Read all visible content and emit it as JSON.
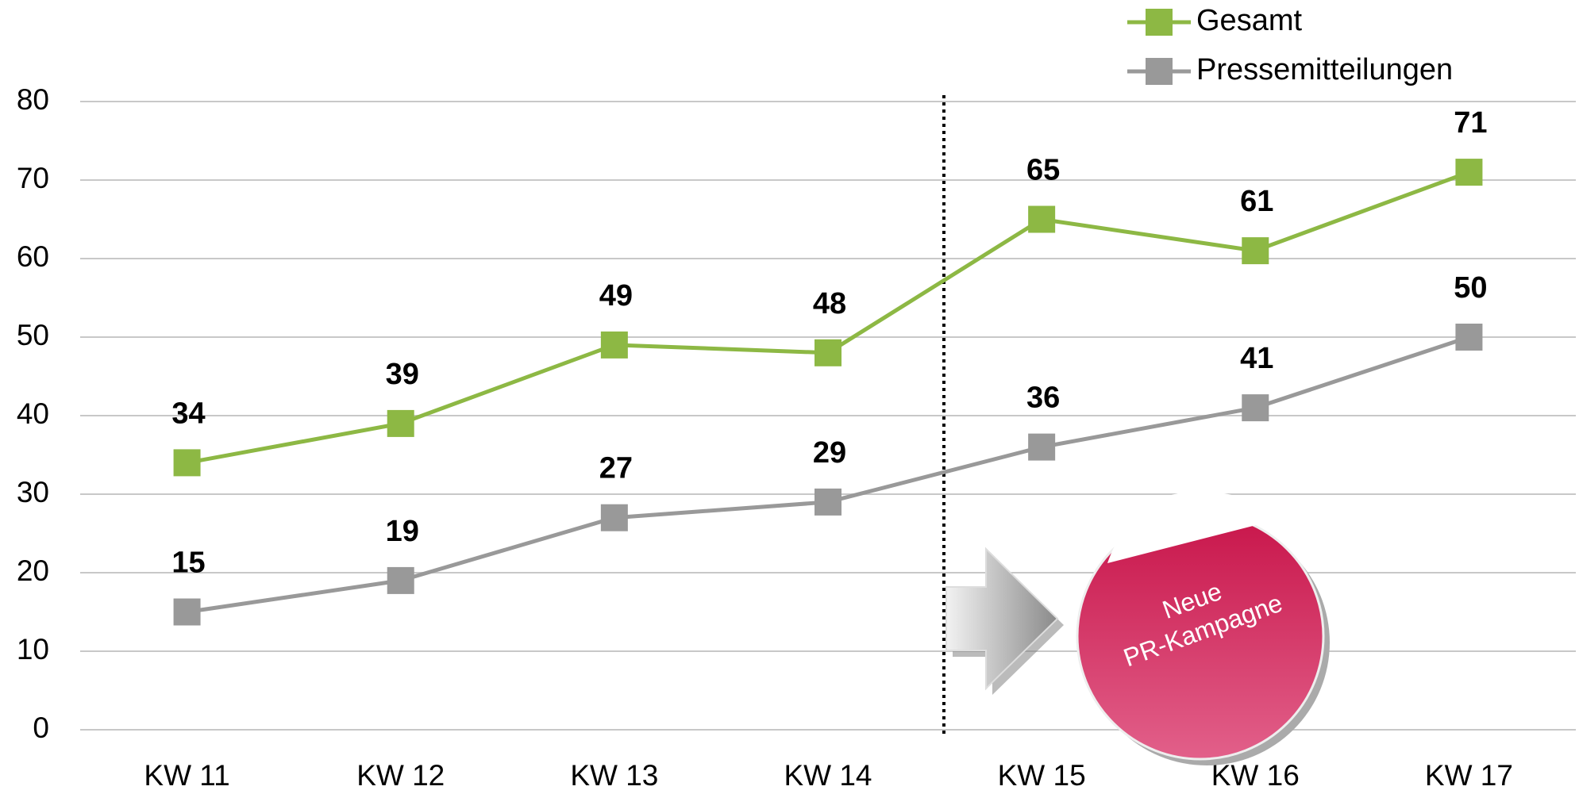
{
  "chart_data": {
    "type": "line",
    "categories": [
      "KW 11",
      "KW 12",
      "KW 13",
      "KW 14",
      "KW 15",
      "KW 16",
      "KW 17"
    ],
    "series": [
      {
        "name": "Gesamt",
        "color": "#8db844",
        "values": [
          34,
          39,
          49,
          48,
          65,
          61,
          71
        ]
      },
      {
        "name": "Pressemitteilungen",
        "color": "#999999",
        "values": [
          15,
          19,
          27,
          29,
          36,
          41,
          50
        ]
      }
    ],
    "ylim": [
      0,
      80
    ],
    "yticks": [
      0,
      10,
      20,
      30,
      40,
      50,
      60,
      70,
      80
    ],
    "grid": true,
    "legend": "top-right",
    "annotation": [
      "Neue",
      "PR-Kampagne"
    ]
  }
}
